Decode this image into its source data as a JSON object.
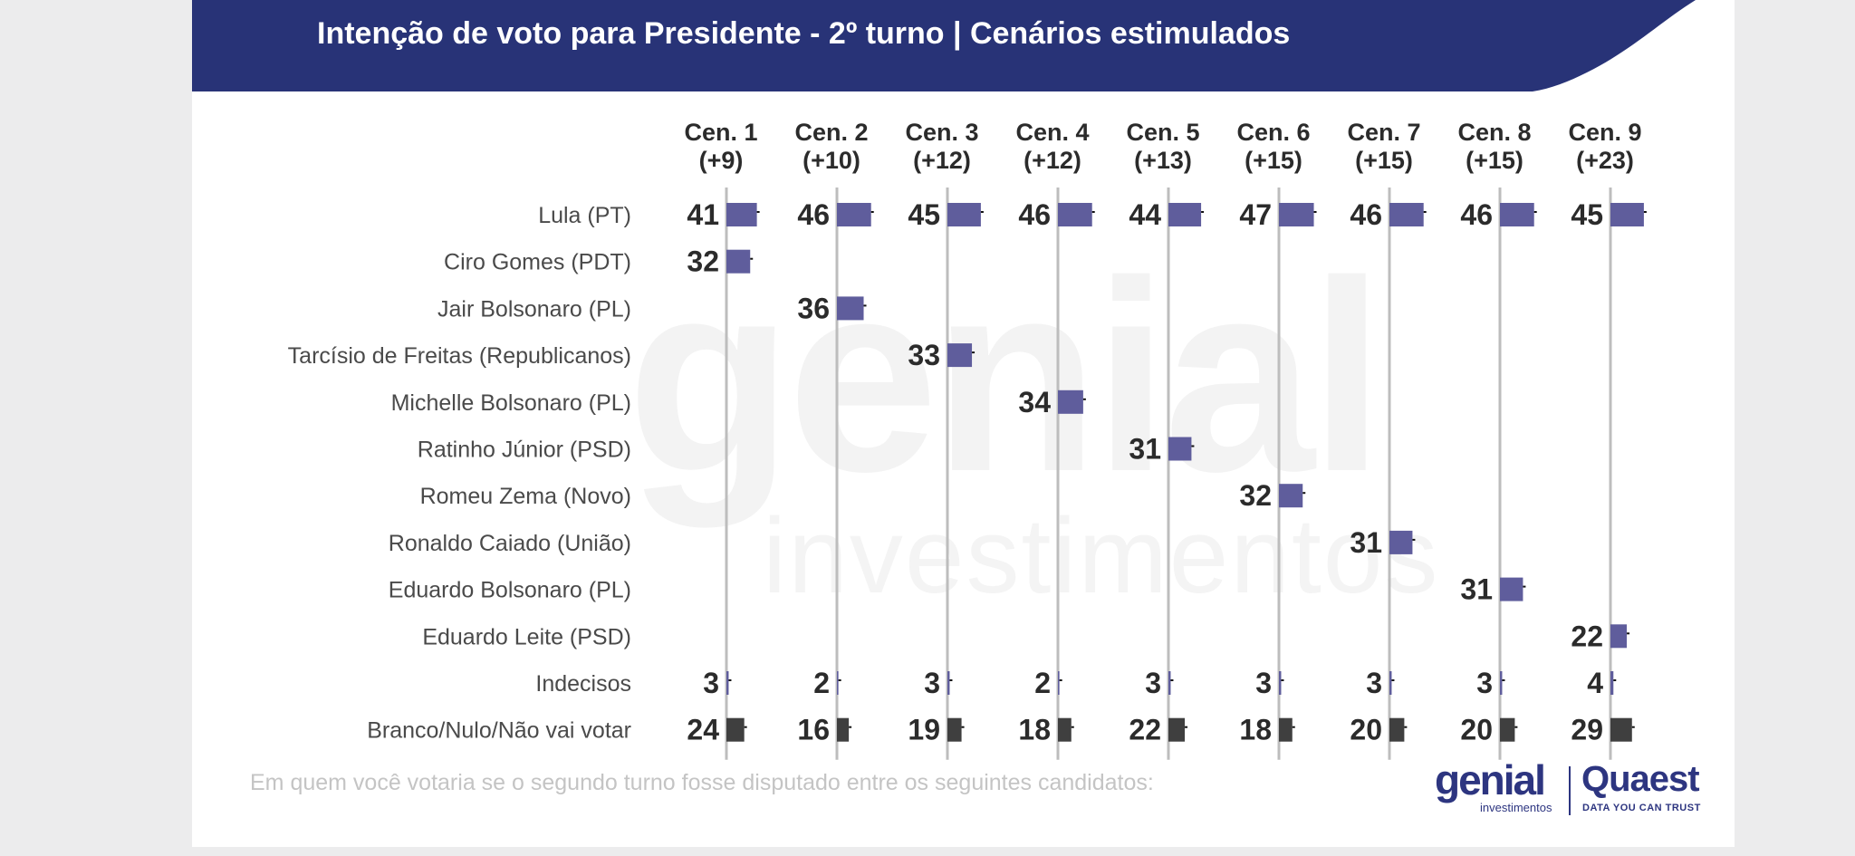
{
  "header": {
    "title": "Intenção de voto para Presidente - 2º turno | Cenários estimulados"
  },
  "colors": {
    "header_bg": "#283377",
    "bar_main": "#5f5d9c",
    "bar_blank": "#3f3f3f",
    "axis_line": "#bdbdbd",
    "text": "#2b2b2b"
  },
  "watermark": {
    "big": "genial",
    "small": "investimentos"
  },
  "chart_data": {
    "type": "bar",
    "title": "Intenção de voto para Presidente - 2º turno | Cenários estimulados",
    "columns": [
      {
        "name": "Cen. 1",
        "margin": "(+9)"
      },
      {
        "name": "Cen. 2",
        "margin": "(+10)"
      },
      {
        "name": "Cen. 3",
        "margin": "(+12)"
      },
      {
        "name": "Cen. 4",
        "margin": "(+12)"
      },
      {
        "name": "Cen. 5",
        "margin": "(+13)"
      },
      {
        "name": "Cen. 6",
        "margin": "(+15)"
      },
      {
        "name": "Cen. 7",
        "margin": "(+15)"
      },
      {
        "name": "Cen. 8",
        "margin": "(+15)"
      },
      {
        "name": "Cen. 9",
        "margin": "(+23)"
      }
    ],
    "rows": [
      {
        "label": "Lula (PT)",
        "values": [
          41,
          46,
          45,
          46,
          44,
          47,
          46,
          46,
          45
        ]
      },
      {
        "label": "Ciro Gomes (PDT)",
        "values": [
          32,
          null,
          null,
          null,
          null,
          null,
          null,
          null,
          null
        ]
      },
      {
        "label": "Jair Bolsonaro (PL)",
        "values": [
          null,
          36,
          null,
          null,
          null,
          null,
          null,
          null,
          null
        ]
      },
      {
        "label": "Tarcísio de Freitas (Republicanos)",
        "values": [
          null,
          null,
          33,
          null,
          null,
          null,
          null,
          null,
          null
        ]
      },
      {
        "label": "Michelle Bolsonaro (PL)",
        "values": [
          null,
          null,
          null,
          34,
          null,
          null,
          null,
          null,
          null
        ]
      },
      {
        "label": "Ratinho Júnior (PSD)",
        "values": [
          null,
          null,
          null,
          null,
          31,
          null,
          null,
          null,
          null
        ]
      },
      {
        "label": "Romeu Zema (Novo)",
        "values": [
          null,
          null,
          null,
          null,
          null,
          32,
          null,
          null,
          null
        ]
      },
      {
        "label": "Ronaldo Caiado (União)",
        "values": [
          null,
          null,
          null,
          null,
          null,
          null,
          31,
          null,
          null
        ]
      },
      {
        "label": "Eduardo Bolsonaro (PL)",
        "values": [
          null,
          null,
          null,
          null,
          null,
          null,
          null,
          31,
          null
        ]
      },
      {
        "label": "Eduardo Leite (PSD)",
        "values": [
          null,
          null,
          null,
          null,
          null,
          null,
          null,
          null,
          22
        ]
      },
      {
        "label": "Indecisos",
        "values": [
          3,
          2,
          3,
          2,
          3,
          3,
          3,
          3,
          4
        ]
      },
      {
        "label": "Branco/Nulo/Não vai votar",
        "values": [
          24,
          16,
          19,
          18,
          22,
          18,
          20,
          20,
          29
        ]
      }
    ],
    "xlim": [
      0,
      100
    ],
    "grid": false,
    "legend": "none"
  },
  "footnote": "Em quem você votaria se o segundo turno fosse disputado entre os seguintes candidatos:",
  "logos": {
    "genial": "genial",
    "genial_sub": "investimentos",
    "quaest": "Quaest",
    "quaest_sub": "DATA YOU CAN TRUST"
  }
}
